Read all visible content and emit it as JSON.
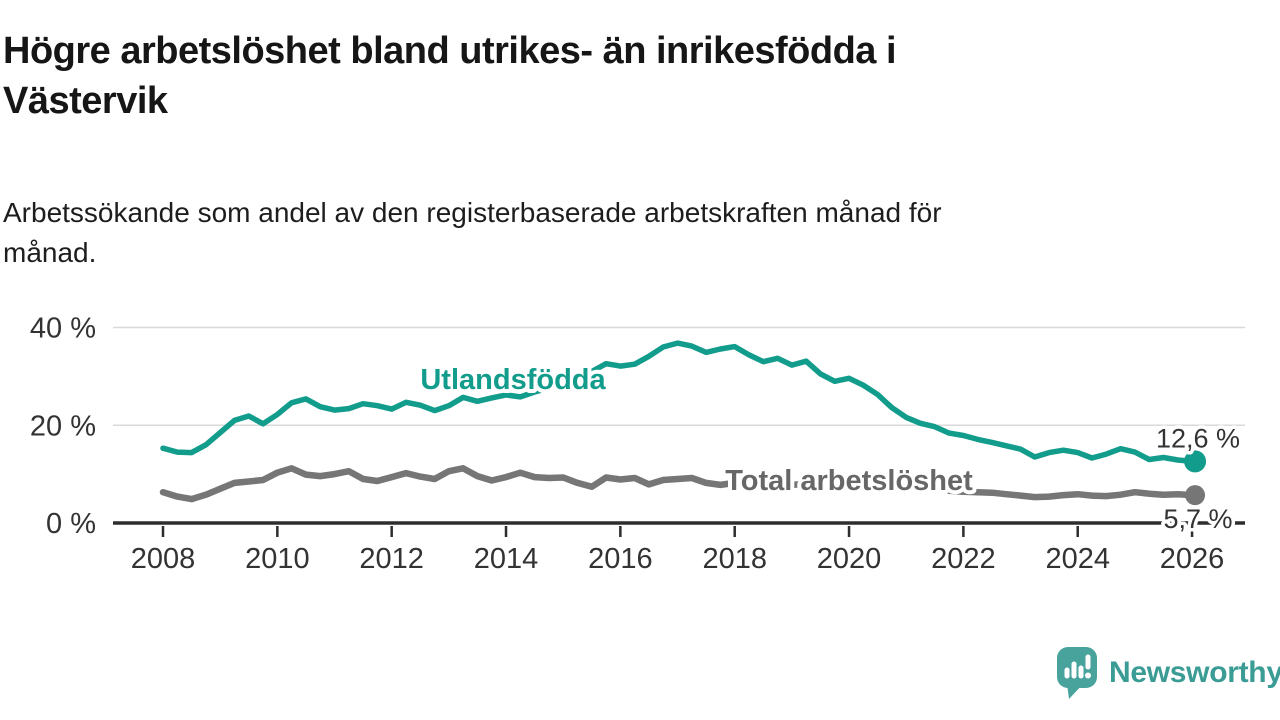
{
  "header": {
    "title_line1": "Högre arbetslöshet bland utrikes- än inrikesfödda i",
    "title_line2": "Västervik",
    "subtitle_line1": "Arbetssökande som andel av den registerbaserade arbetskraften månad för",
    "subtitle_line2": "månad."
  },
  "branding": {
    "name": "Newsworthy",
    "logo_color": "#48a39d",
    "text_color": "#3b9c95"
  },
  "colors": {
    "accent_teal": "#129c8c",
    "series_gray": "#767676",
    "axis": "#2d2d2d",
    "grid": "#d9d9d9",
    "tick_text": "#333333"
  },
  "chart_data": {
    "type": "line",
    "title": "Högre arbetslöshet bland utrikes- än inrikesfödda i Västervik",
    "subtitle": "Arbetssökande som andel av den registerbaserade arbetskraften månad för månad.",
    "unit": "%",
    "grid": true,
    "legend_position": "inline-labels",
    "xlim": [
      2007.1,
      2026.9
    ],
    "ylim": [
      0,
      42
    ],
    "x_axis": {
      "ticks": [
        2008,
        2010,
        2012,
        2014,
        2016,
        2018,
        2020,
        2022,
        2024,
        2026
      ]
    },
    "y_axis": {
      "ticks": [
        {
          "value": 0,
          "label": "0 %"
        },
        {
          "value": 20,
          "label": "20 %"
        },
        {
          "value": 40,
          "label": "40 %"
        }
      ]
    },
    "x": [
      2008,
      2008.25,
      2008.5,
      2008.75,
      2009,
      2009.25,
      2009.5,
      2009.75,
      2010,
      2010.25,
      2010.5,
      2010.75,
      2011,
      2011.25,
      2011.5,
      2011.75,
      2012,
      2012.25,
      2012.5,
      2012.75,
      2013,
      2013.25,
      2013.5,
      2013.75,
      2014,
      2014.25,
      2014.5,
      2014.75,
      2015,
      2015.25,
      2015.5,
      2015.75,
      2016,
      2016.25,
      2016.5,
      2016.75,
      2017,
      2017.25,
      2017.5,
      2017.75,
      2018,
      2018.25,
      2018.5,
      2018.75,
      2019,
      2019.25,
      2019.5,
      2019.75,
      2020,
      2020.25,
      2020.5,
      2020.75,
      2021,
      2021.25,
      2021.5,
      2021.75,
      2022,
      2022.25,
      2022.5,
      2022.75,
      2023,
      2023.25,
      2023.5,
      2023.75,
      2024,
      2024.25,
      2024.5,
      2024.75,
      2025,
      2025.25,
      2025.5,
      2025.75,
      2026
    ],
    "series": [
      {
        "id": "utlandsfodda",
        "name": "Utlandsfödda",
        "color": "#129c8c",
        "label_color": "#129c8c",
        "stroke_width": 5.5,
        "dot_radius": 11,
        "end_label": "12,6 %",
        "end_value": 12.6,
        "values": [
          15.3,
          14.5,
          14.4,
          16.0,
          18.5,
          21.0,
          21.9,
          20.3,
          22.2,
          24.6,
          25.4,
          23.8,
          23.1,
          23.4,
          24.4,
          24.0,
          23.3,
          24.7,
          24.1,
          23.0,
          24.0,
          25.7,
          24.9,
          25.6,
          26.2,
          25.8,
          26.8,
          27.6,
          28.3,
          29.4,
          31.0,
          32.6,
          32.1,
          32.5,
          34.1,
          36.0,
          36.8,
          36.2,
          34.9,
          35.6,
          36.1,
          34.4,
          33.0,
          33.7,
          32.3,
          33.1,
          30.5,
          29.0,
          29.6,
          28.2,
          26.3,
          23.6,
          21.6,
          20.4,
          19.7,
          18.4,
          17.9,
          17.1,
          16.5,
          15.8,
          15.1,
          13.5,
          14.4,
          14.9,
          14.4,
          13.3,
          14.1,
          15.2,
          14.5,
          13.0,
          13.4,
          12.9,
          12.6
        ]
      },
      {
        "id": "total-arbetsloshet",
        "name": "Total arbetslöshet",
        "color": "#767676",
        "label_color": "#676767",
        "stroke_width": 6.5,
        "dot_radius": 10,
        "end_label": "5,7 %",
        "end_value": 5.7,
        "values": [
          6.3,
          5.4,
          4.9,
          5.8,
          7.0,
          8.2,
          8.5,
          8.8,
          10.3,
          11.2,
          9.9,
          9.6,
          10.0,
          10.6,
          9.0,
          8.6,
          9.4,
          10.2,
          9.5,
          9.0,
          10.6,
          11.2,
          9.6,
          8.7,
          9.4,
          10.3,
          9.4,
          9.2,
          9.3,
          8.2,
          7.4,
          9.3,
          8.9,
          9.2,
          7.9,
          8.8,
          9.0,
          9.2,
          8.2,
          7.8,
          8.2,
          8.6,
          7.9,
          7.6,
          7.8,
          8.0,
          7.4,
          7.6,
          8.0,
          9.0,
          8.8,
          8.2,
          7.8,
          7.4,
          7.0,
          6.6,
          6.4,
          6.3,
          6.2,
          5.9,
          5.6,
          5.3,
          5.4,
          5.7,
          5.9,
          5.6,
          5.5,
          5.8,
          6.3,
          6.0,
          5.8,
          5.9,
          5.7
        ]
      }
    ]
  }
}
